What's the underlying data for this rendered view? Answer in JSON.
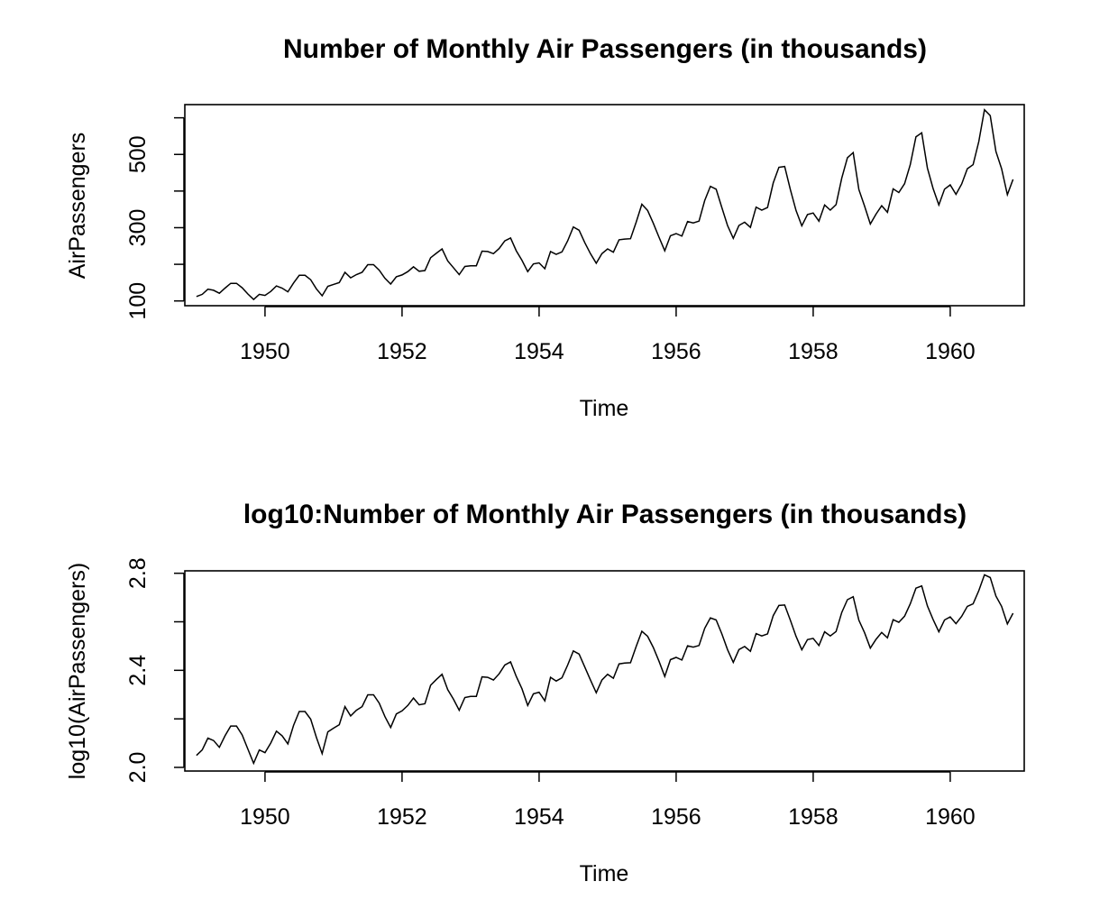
{
  "chart_data": [
    {
      "type": "line",
      "title": "Number of Monthly Air Passengers (in thousands)",
      "xlabel": "Time",
      "ylabel": "AirPassengers",
      "xlim": [
        1948.83,
        1961.08
      ],
      "ylim": [
        87,
        636
      ],
      "x_ticks": [
        "1950",
        "1952",
        "1954",
        "1956",
        "1958",
        "1960"
      ],
      "y_ticks": [
        "100",
        "300",
        "500"
      ],
      "grid": false,
      "series": [
        {
          "x_start": 1949,
          "x_step": 0.0833333,
          "values": [
            112,
            118,
            132,
            129,
            121,
            135,
            148,
            148,
            136,
            119,
            104,
            118,
            115,
            126,
            141,
            135,
            125,
            149,
            170,
            170,
            158,
            133,
            114,
            140,
            145,
            150,
            178,
            163,
            172,
            178,
            199,
            199,
            184,
            162,
            146,
            166,
            171,
            180,
            193,
            181,
            183,
            218,
            230,
            242,
            209,
            191,
            172,
            194,
            196,
            196,
            236,
            235,
            229,
            243,
            264,
            272,
            237,
            211,
            180,
            201,
            204,
            188,
            235,
            227,
            234,
            264,
            302,
            293,
            259,
            229,
            203,
            229,
            242,
            233,
            267,
            269,
            270,
            315,
            364,
            347,
            312,
            274,
            237,
            278,
            284,
            277,
            317,
            313,
            318,
            374,
            413,
            405,
            355,
            306,
            271,
            306,
            315,
            301,
            356,
            348,
            355,
            422,
            465,
            467,
            404,
            347,
            305,
            336,
            340,
            318,
            362,
            348,
            363,
            435,
            491,
            505,
            404,
            359,
            310,
            337,
            360,
            342,
            406,
            396,
            420,
            472,
            548,
            559,
            463,
            407,
            362,
            405,
            417,
            391,
            419,
            461,
            472,
            535,
            622,
            606,
            508,
            461,
            390,
            432
          ]
        }
      ]
    },
    {
      "type": "line",
      "title": "log10:Number of Monthly Air Passengers (in thousands)",
      "xlabel": "Time",
      "ylabel": "log10(AirPassengers)",
      "xlim": [
        1948.83,
        1961.08
      ],
      "ylim": [
        1.985,
        2.81
      ],
      "x_ticks": [
        "1950",
        "1952",
        "1954",
        "1956",
        "1958",
        "1960"
      ],
      "y_ticks": [
        "2.0",
        "2.4",
        "2.8"
      ],
      "grid": false,
      "series": [
        {
          "x_start": 1949,
          "x_step": 0.0833333,
          "transform": "log10",
          "values": [
            112,
            118,
            132,
            129,
            121,
            135,
            148,
            148,
            136,
            119,
            104,
            118,
            115,
            126,
            141,
            135,
            125,
            149,
            170,
            170,
            158,
            133,
            114,
            140,
            145,
            150,
            178,
            163,
            172,
            178,
            199,
            199,
            184,
            162,
            146,
            166,
            171,
            180,
            193,
            181,
            183,
            218,
            230,
            242,
            209,
            191,
            172,
            194,
            196,
            196,
            236,
            235,
            229,
            243,
            264,
            272,
            237,
            211,
            180,
            201,
            204,
            188,
            235,
            227,
            234,
            264,
            302,
            293,
            259,
            229,
            203,
            229,
            242,
            233,
            267,
            269,
            270,
            315,
            364,
            347,
            312,
            274,
            237,
            278,
            284,
            277,
            317,
            313,
            318,
            374,
            413,
            405,
            355,
            306,
            271,
            306,
            315,
            301,
            356,
            348,
            355,
            422,
            465,
            467,
            404,
            347,
            305,
            336,
            340,
            318,
            362,
            348,
            363,
            435,
            491,
            505,
            404,
            359,
            310,
            337,
            360,
            342,
            406,
            396,
            420,
            472,
            548,
            559,
            463,
            407,
            362,
            405,
            417,
            391,
            419,
            461,
            472,
            535,
            622,
            606,
            508,
            461,
            390,
            432
          ]
        }
      ]
    }
  ]
}
